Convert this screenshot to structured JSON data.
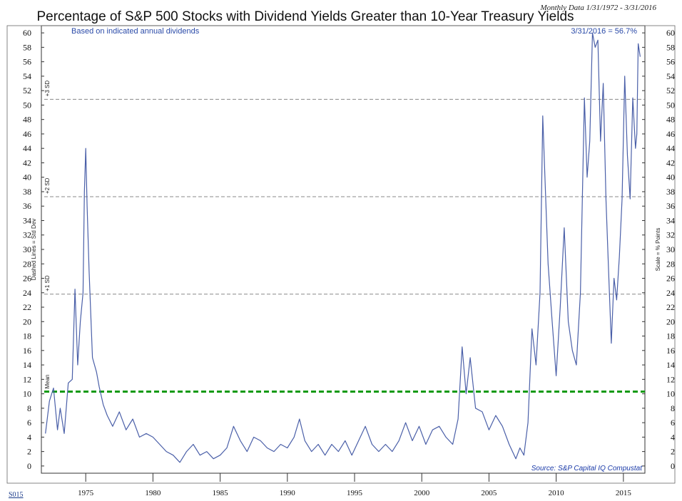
{
  "chart_data": {
    "type": "line",
    "title": "Percentage of S&P 500 Stocks with Dividend Yields Greater than 10-Year Treasury Yields",
    "subtitle": "Monthly Data 1/31/1972 - 3/31/2016",
    "note": "Based on indicated annual dividends",
    "latest_label": "3/31/2016 = 56.7%",
    "left_axis_label": "Dashed Lines = Std Dev",
    "right_axis_label": "Scale = % Points",
    "source": "Source: S&P Capital IQ Compustat",
    "footer": "S015",
    "xlim": [
      1971.7,
      2016.6
    ],
    "ylim": [
      -1,
      61
    ],
    "y_ticks": [
      0,
      2,
      4,
      6,
      8,
      10,
      12,
      14,
      16,
      18,
      20,
      22,
      24,
      26,
      28,
      30,
      32,
      34,
      36,
      38,
      40,
      42,
      44,
      46,
      48,
      50,
      52,
      54,
      56,
      58,
      60
    ],
    "x_ticks": [
      1975,
      1980,
      1985,
      1990,
      1995,
      2000,
      2005,
      2010,
      2015
    ],
    "reference_lines": [
      {
        "name": "mean",
        "label": "Mean",
        "value": 10.3,
        "style": "dashed",
        "color": "#109a10"
      },
      {
        "name": "plus1sd",
        "label": "+1 SD",
        "value": 23.8,
        "style": "dashed",
        "color": "#888888"
      },
      {
        "name": "plus2sd",
        "label": "+2 SD",
        "value": 37.3,
        "style": "dashed",
        "color": "#888888"
      },
      {
        "name": "plus3sd",
        "label": "+3 SD",
        "value": 50.8,
        "style": "dashed",
        "color": "#888888"
      }
    ],
    "series": [
      {
        "color": "#4a5fa8",
        "x": [
          1972.0,
          1972.3,
          1972.6,
          1972.9,
          1973.1,
          1973.4,
          1973.7,
          1974.0,
          1974.2,
          1974.4,
          1974.6,
          1974.8,
          1974.9,
          1975.0,
          1975.1,
          1975.25,
          1975.5,
          1975.8,
          1976.0,
          1976.3,
          1976.6,
          1977.0,
          1977.5,
          1978.0,
          1978.5,
          1979.0,
          1979.5,
          1980.0,
          1980.5,
          1981.0,
          1981.5,
          1982.0,
          1982.5,
          1983.0,
          1983.5,
          1984.0,
          1984.5,
          1985.0,
          1985.5,
          1986.0,
          1986.5,
          1987.0,
          1987.5,
          1988.0,
          1988.5,
          1989.0,
          1989.5,
          1990.0,
          1990.5,
          1990.9,
          1991.3,
          1991.8,
          1992.3,
          1992.8,
          1993.3,
          1993.8,
          1994.3,
          1994.8,
          1995.3,
          1995.8,
          1996.3,
          1996.8,
          1997.3,
          1997.8,
          1998.3,
          1998.8,
          1999.3,
          1999.8,
          2000.3,
          2000.8,
          2001.3,
          2001.8,
          2002.3,
          2002.7,
          2003.0,
          2003.3,
          2003.6,
          2004.0,
          2004.5,
          2005.0,
          2005.5,
          2006.0,
          2006.5,
          2007.0,
          2007.3,
          2007.6,
          2007.9,
          2008.2,
          2008.5,
          2008.8,
          2009.0,
          2009.2,
          2009.4,
          2009.7,
          2010.0,
          2010.3,
          2010.6,
          2010.9,
          2011.2,
          2011.5,
          2011.8,
          2012.1,
          2012.3,
          2012.5,
          2012.7,
          2012.9,
          2013.1,
          2013.3,
          2013.5,
          2013.7,
          2013.9,
          2014.1,
          2014.3,
          2014.5,
          2014.7,
          2014.9,
          2015.1,
          2015.3,
          2015.5,
          2015.7,
          2015.9,
          2016.0,
          2016.1,
          2016.25
        ],
        "y": [
          4.5,
          9.0,
          10.8,
          5.0,
          8.0,
          4.5,
          11.5,
          12.0,
          24.5,
          14.0,
          20.0,
          24.0,
          38.0,
          44.0,
          36.0,
          27.0,
          15.0,
          13.0,
          11.0,
          8.5,
          7.0,
          5.5,
          7.5,
          5.0,
          6.5,
          4.0,
          4.5,
          4.0,
          3.0,
          2.0,
          1.5,
          0.5,
          2.0,
          3.0,
          1.5,
          2.0,
          1.0,
          1.5,
          2.5,
          5.5,
          3.5,
          2.0,
          4.0,
          3.5,
          2.5,
          2.0,
          3.0,
          2.5,
          4.0,
          6.5,
          3.5,
          2.0,
          3.0,
          1.5,
          3.0,
          2.0,
          3.5,
          1.5,
          3.5,
          5.5,
          3.0,
          2.0,
          3.0,
          2.0,
          3.5,
          6.0,
          3.5,
          5.5,
          3.0,
          5.0,
          5.5,
          4.0,
          3.0,
          6.5,
          16.5,
          10.0,
          15.0,
          8.0,
          7.5,
          5.0,
          7.0,
          5.5,
          3.0,
          1.0,
          2.5,
          1.5,
          6.0,
          19.0,
          14.0,
          24.0,
          48.5,
          38.0,
          28.0,
          20.0,
          12.5,
          22.0,
          33.0,
          20.0,
          16.0,
          14.0,
          24.0,
          51.0,
          40.0,
          45.0,
          60.0,
          58.0,
          59.0,
          45.0,
          53.0,
          37.0,
          27.0,
          17.0,
          26.0,
          23.0,
          29.0,
          37.0,
          54.0,
          43.0,
          37.0,
          51.0,
          44.0,
          46.0,
          58.5,
          56.7
        ]
      }
    ]
  }
}
